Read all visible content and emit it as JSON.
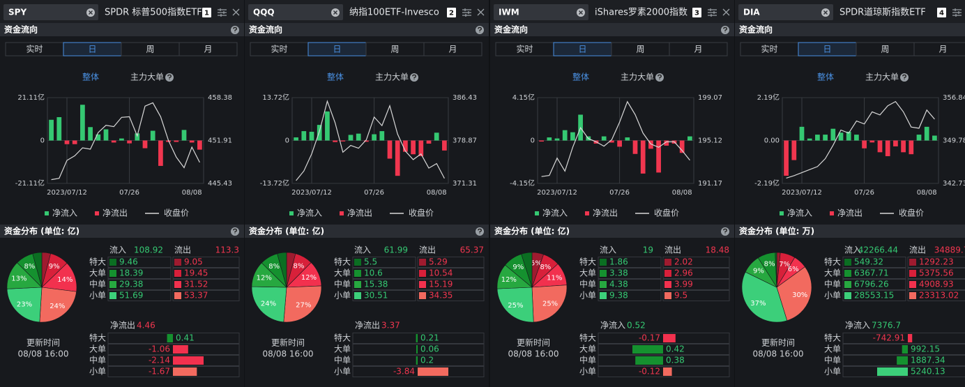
{
  "colors": {
    "up": "#35c872",
    "down": "#f0364f",
    "line": "#d8d8d8",
    "accent": "#4a90e2",
    "inflow": [
      "#0b6e22",
      "#15912f",
      "#27a840",
      "#3ccf7a"
    ],
    "outflow": [
      "#9e1b2f",
      "#d8203a",
      "#f2314e",
      "#f26a5f"
    ]
  },
  "panels": [
    {
      "ticker": "SPY",
      "name": "SPDR 标普500指数ETF",
      "badge": "1",
      "flow_title": "资金流向",
      "tabs": [
        "实时",
        "日",
        "周",
        "月"
      ],
      "subtabs": [
        "整体",
        "主力大单"
      ],
      "chart": {
        "type": "bar",
        "categories": [
          null,
          null,
          "2023/07/12",
          null,
          null,
          null,
          null,
          null,
          null,
          null,
          "07/26",
          null,
          null,
          null,
          null,
          null,
          null,
          null,
          "08/08",
          null
        ],
        "values": [
          10.2,
          11.5,
          -1.8,
          -1.8,
          17.6,
          6.6,
          3.0,
          5.5,
          -1.0,
          1.0,
          -1.4,
          3.5,
          -3.8,
          4.8,
          -12.5,
          -0.7,
          -0.7,
          5.2,
          -1.0,
          -4.5
        ],
        "close": [
          446.0,
          446.2,
          448.9,
          449.6,
          450.8,
          450.6,
          453.1,
          454.2,
          454.0,
          455.4,
          455.5,
          452.6,
          457.1,
          457.6,
          455.5,
          451.9,
          449.4,
          447.8,
          450.9,
          448.6
        ],
        "ylim": [
          -21.11,
          21.11
        ],
        "yticks": [
          {
            "value": -21.11,
            "label": "-21.11亿"
          },
          0,
          {
            "value": 21.11,
            "label": "21.11亿"
          }
        ],
        "y2lim": [
          445.43,
          458.38
        ],
        "y2ticks": [
          445.43,
          451.91,
          458.38
        ],
        "legend": [
          "净流入",
          "净流出",
          "收盘价"
        ]
      },
      "distribution": {
        "title": "资金分布 (单位: 亿)",
        "inflow_label": "流入",
        "inflow_total": 108.92,
        "outflow_label": "流出",
        "outflow_total": 113.3,
        "rows": [
          "特大",
          "大单",
          "中单",
          "小单"
        ],
        "inflow": [
          9.46,
          18.39,
          29.38,
          51.69
        ],
        "outflow": [
          9.05,
          19.45,
          31.52,
          53.37
        ],
        "slice_labels": {
          "outflow": [
            null,
            "9%",
            "14%",
            "24%"
          ],
          "inflow": [
            null,
            "8%",
            "13%",
            "23%"
          ]
        }
      },
      "net": {
        "label": "净流出",
        "value": 4.46,
        "values": [
          0.41,
          -1.06,
          -2.14,
          -1.67
        ]
      },
      "update_label": "更新时间",
      "update_time": "08/08 16:00"
    },
    {
      "ticker": "QQQ",
      "name": "纳指100ETF-Invesco",
      "badge": "2",
      "flow_title": "资金流向",
      "tabs": [
        "实时",
        "日",
        "周",
        "月"
      ],
      "subtabs": [
        "整体",
        "主力大单"
      ],
      "chart": {
        "type": "bar",
        "categories": [
          null,
          null,
          "2023/07/12",
          null,
          null,
          null,
          null,
          null,
          null,
          null,
          "07/26",
          null,
          null,
          null,
          null,
          null,
          null,
          null,
          "08/08",
          null
        ],
        "values": [
          1.0,
          3.0,
          2.8,
          5.0,
          9.3,
          -0.5,
          -0.3,
          1.8,
          2.2,
          -0.4,
          2.0,
          3.0,
          -5.8,
          -11.3,
          -3.6,
          -4.4,
          -5.0,
          -1.0,
          2.5,
          -3.2
        ],
        "close": [
          371.8,
          373.5,
          376.5,
          380.5,
          385.8,
          382.0,
          376.8,
          378.0,
          377.5,
          379.0,
          383.0,
          381.5,
          385.0,
          380.0,
          377.0,
          375.5,
          376.5,
          374.0,
          374.8,
          372.2
        ],
        "ylim": [
          -13.72,
          13.72
        ],
        "yticks": [
          {
            "value": -13.72,
            "label": "-13.72亿"
          },
          0,
          {
            "value": 13.72,
            "label": "13.72亿"
          }
        ],
        "y2lim": [
          371.31,
          386.43
        ],
        "y2ticks": [
          371.31,
          378.87,
          386.43
        ],
        "legend": [
          "净流入",
          "净流出",
          "收盘价"
        ]
      },
      "distribution": {
        "title": "资金分布 (单位: 亿)",
        "inflow_label": "流入",
        "inflow_total": 61.99,
        "outflow_label": "流出",
        "outflow_total": 65.37,
        "rows": [
          "特大",
          "大单",
          "中单",
          "小单"
        ],
        "inflow": [
          5.5,
          10.6,
          15.38,
          30.51
        ],
        "outflow": [
          5.29,
          10.54,
          15.19,
          34.35
        ],
        "slice_labels": {
          "outflow": [
            null,
            "8%",
            "12%",
            "27%"
          ],
          "inflow": [
            null,
            "8%",
            "12%",
            "24%"
          ]
        }
      },
      "net": {
        "label": "净流出",
        "value": 3.37,
        "values": [
          0.21,
          0.06,
          0.2,
          -3.84
        ]
      },
      "update_label": "更新时间",
      "update_time": "08/08 16:00"
    },
    {
      "ticker": "IWM",
      "name": "iShares罗素2000指数",
      "badge": "3",
      "flow_title": "资金流向",
      "tabs": [
        "实时",
        "日",
        "周",
        "月"
      ],
      "subtabs": [
        "整体",
        "主力大单"
      ],
      "chart": {
        "type": "bar",
        "categories": [
          null,
          null,
          "2023/07/12",
          null,
          null,
          null,
          null,
          null,
          null,
          null,
          "07/26",
          null,
          null,
          null,
          null,
          null,
          null,
          null,
          "08/08",
          null
        ],
        "values": [
          -0.1,
          0.3,
          0.2,
          1.0,
          0.8,
          2.5,
          0.4,
          -0.3,
          0.4,
          -0.2,
          -0.6,
          0.3,
          -1.3,
          -3.2,
          -0.8,
          -3.1,
          -0.5,
          -0.3,
          -1.2,
          0.4
        ],
        "close": [
          191.8,
          191.9,
          193.5,
          192.3,
          194.5,
          196.3,
          195.3,
          195.0,
          194.6,
          195.2,
          196.8,
          198.7,
          197.5,
          195.8,
          194.8,
          194.5,
          195.0,
          195.0,
          194.2,
          193.3
        ],
        "ylim": [
          -4.15,
          4.15
        ],
        "yticks": [
          {
            "value": -4.15,
            "label": "-4.15亿"
          },
          0,
          {
            "value": 4.15,
            "label": "4.15亿"
          }
        ],
        "y2lim": [
          191.17,
          199.07
        ],
        "y2ticks": [
          191.17,
          195.12,
          199.07
        ],
        "legend": [
          "净流入",
          "净流出",
          "收盘价"
        ]
      },
      "distribution": {
        "title": "资金分布 (单位: 亿)",
        "inflow_label": "流入",
        "inflow_total": 19,
        "outflow_label": "流出",
        "outflow_total": 18.48,
        "rows": [
          "特大",
          "大单",
          "中单",
          "小单"
        ],
        "inflow": [
          1.86,
          3.38,
          4.38,
          9.38
        ],
        "outflow": [
          2.02,
          2.96,
          3.99,
          9.5
        ],
        "slice_labels": {
          "outflow": [
            "5%",
            "8%",
            "11%",
            "25%"
          ],
          "inflow": [
            null,
            "9%",
            "12%",
            "25%"
          ]
        }
      },
      "net": {
        "label": "净流入",
        "value": 0.52,
        "values": [
          -0.17,
          0.42,
          0.38,
          -0.12
        ]
      },
      "update_label": "更新时间",
      "update_time": "08/08 16:00"
    },
    {
      "ticker": "DIA",
      "name": "SPDR道琼斯指数ETF",
      "badge": "4",
      "flow_title": "资金流向",
      "tabs": [
        "实时",
        "日",
        "周",
        "月"
      ],
      "subtabs": [
        "整体",
        "主力大单"
      ],
      "chart": {
        "type": "bar",
        "categories": [
          null,
          null,
          "2023/07/12",
          null,
          null,
          null,
          null,
          null,
          null,
          null,
          "07/26",
          null,
          null,
          null,
          null,
          null,
          null,
          null,
          "08/08",
          null
        ],
        "values": [
          -1.8,
          -1.0,
          0.7,
          0.1,
          0.3,
          0.3,
          0.6,
          0.4,
          0.45,
          0.3,
          -0.4,
          -0.1,
          -0.6,
          -0.8,
          -0.3,
          -0.6,
          -0.7,
          0.3,
          0.7,
          0.25
        ],
        "close": [
          343.6,
          344.0,
          344.5,
          345.0,
          345.5,
          346.8,
          349.0,
          351.5,
          351.0,
          353.0,
          352.5,
          354.5,
          354.0,
          355.5,
          356.2,
          354.5,
          352.0,
          351.8,
          354.8,
          353.3
        ],
        "ylim": [
          -2.19,
          2.19
        ],
        "yticks": [
          {
            "value": -2.19,
            "label": "-2.19亿"
          },
          {
            "value": 0,
            "label": "0.00"
          },
          {
            "value": 2.19,
            "label": "2.19亿"
          }
        ],
        "y2lim": [
          342.73,
          356.84
        ],
        "y2ticks": [
          342.73,
          349.78,
          356.84
        ],
        "legend": [
          "净流入",
          "净流出",
          "收盘价"
        ]
      },
      "distribution": {
        "title": "资金分布 (单位: 万)",
        "inflow_label": "流入",
        "inflow_total": 42266.44,
        "outflow_label": "流出",
        "outflow_total": 34889.74,
        "rows": [
          "特大",
          "大单",
          "中单",
          "小单"
        ],
        "inflow": [
          549.32,
          6367.71,
          6796.26,
          28553.15
        ],
        "outflow": [
          1292.23,
          5375.56,
          4908.93,
          23313.02
        ],
        "slice_labels": {
          "outflow": [
            null,
            "7%",
            "6%",
            "30%"
          ],
          "inflow": [
            null,
            "8%",
            "9%",
            "37%"
          ]
        }
      },
      "net": {
        "label": "净流入",
        "value": 7376.7,
        "values": [
          -742.91,
          992.15,
          1887.34,
          5240.13
        ]
      },
      "update_label": "更新时间",
      "update_time": "08/08 16:00"
    }
  ]
}
